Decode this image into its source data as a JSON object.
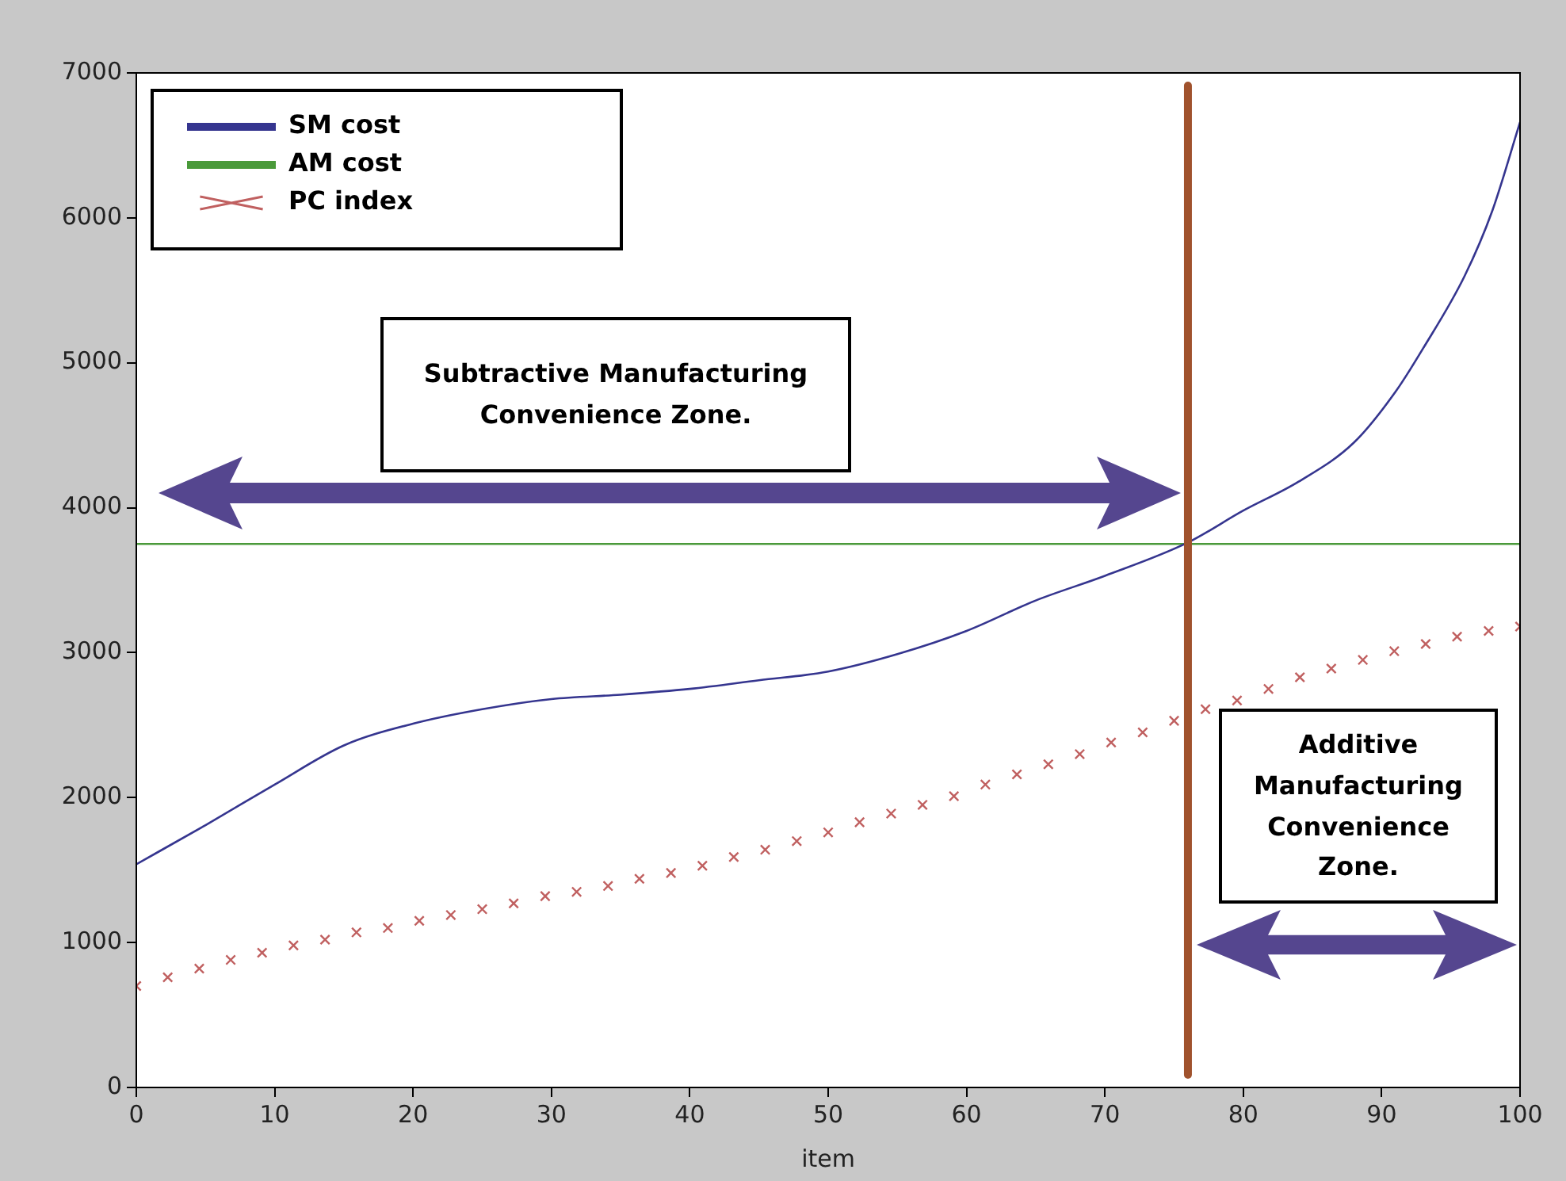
{
  "chart_data": {
    "type": "line",
    "xlabel": "item",
    "xlim": [
      0,
      100
    ],
    "xticks": [
      0,
      10,
      20,
      30,
      40,
      50,
      60,
      70,
      80,
      90,
      100
    ],
    "ylim": [
      0,
      7000
    ],
    "yticks": [
      0,
      1000,
      2000,
      3000,
      4000,
      5000,
      6000,
      7000
    ],
    "grid": false,
    "legend": "top left",
    "series": [
      {
        "name": "SM cost",
        "color": "#35358f",
        "x": [
          0,
          5,
          10,
          15,
          20,
          25,
          30,
          35,
          40,
          45,
          50,
          55,
          60,
          65,
          70,
          76,
          80,
          84,
          88,
          91,
          93,
          96,
          98,
          100
        ],
        "values": [
          1540,
          1810,
          2090,
          2360,
          2510,
          2610,
          2680,
          2710,
          2750,
          2810,
          2870,
          2990,
          3150,
          3360,
          3530,
          3760,
          3980,
          4180,
          4450,
          4800,
          5100,
          5600,
          6050,
          6660
        ]
      },
      {
        "name": "AM cost",
        "color": "#4a9a3a",
        "x": [
          0,
          100
        ],
        "values": [
          3750,
          3750
        ]
      },
      {
        "name": "PC index",
        "type": "scatter",
        "color": "#c06060",
        "marker": "cross",
        "x": [
          0,
          2.27,
          4.55,
          6.82,
          9.09,
          11.36,
          13.64,
          15.91,
          18.18,
          20.45,
          22.73,
          25,
          27.27,
          29.55,
          31.82,
          34.09,
          36.36,
          38.64,
          40.91,
          43.18,
          45.45,
          47.73,
          50,
          52.27,
          54.55,
          56.82,
          59.09,
          61.36,
          63.64,
          65.91,
          68.18,
          70.45,
          72.73,
          75,
          77.27,
          79.55,
          81.82,
          84.09,
          86.36,
          88.64,
          90.91,
          93.18,
          95.45,
          97.73,
          100
        ],
        "values": [
          700,
          760,
          820,
          880,
          930,
          980,
          1020,
          1070,
          1100,
          1150,
          1190,
          1230,
          1270,
          1320,
          1350,
          1390,
          1440,
          1480,
          1530,
          1590,
          1640,
          1700,
          1760,
          1830,
          1890,
          1950,
          2010,
          2090,
          2160,
          2230,
          2300,
          2380,
          2450,
          2530,
          2610,
          2670,
          2750,
          2830,
          2890,
          2950,
          3010,
          3060,
          3110,
          3150,
          3180
        ]
      }
    ],
    "ref_lines": [
      {
        "axis": "x",
        "value": 76,
        "color": "#a0522d"
      }
    ],
    "annotations": [
      "Subtractive Manufacturing Convenience Zone.",
      "Additive Manufacturing Convenience Zone."
    ]
  }
}
